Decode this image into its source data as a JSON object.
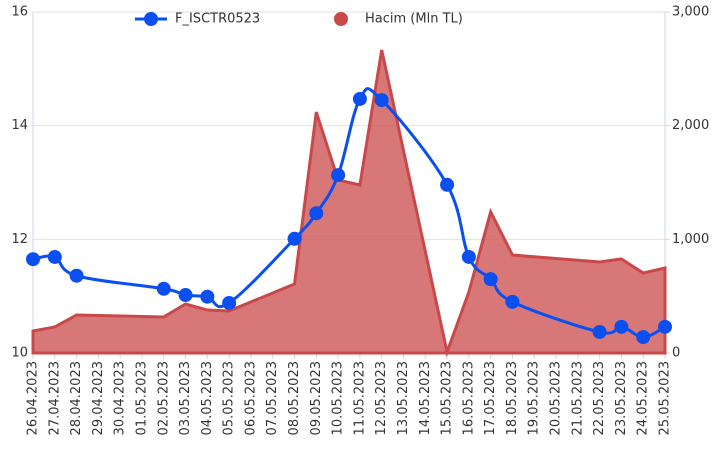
{
  "chart_data": {
    "type": "line-area",
    "categories": [
      "26.04.2023",
      "27.04.2023",
      "28.04.2023",
      "29.04.2023",
      "30.04.2023",
      "01.05.2023",
      "02.05.2023",
      "03.05.2023",
      "04.05.2023",
      "05.05.2023",
      "06.05.2023",
      "07.05.2023",
      "08.05.2023",
      "09.05.2023",
      "10.05.2023",
      "11.05.2023",
      "12.05.2023",
      "13.05.2023",
      "14.05.2023",
      "15.05.2023",
      "16.05.2023",
      "17.05.2023",
      "18.05.2023",
      "19.05.2023",
      "20.05.2023",
      "21.05.2023",
      "22.05.2023",
      "23.05.2023",
      "24.05.2023",
      "25.05.2023"
    ],
    "series": [
      {
        "name": "F_ISCTR0523",
        "color": "#0b4ff0",
        "kind": "line",
        "x": [
          "26.04.2023",
          "27.04.2023",
          "28.04.2023",
          "02.05.2023",
          "03.05.2023",
          "04.05.2023",
          "05.05.2023",
          "08.05.2023",
          "09.05.2023",
          "10.05.2023",
          "11.05.2023",
          "12.05.2023",
          "15.05.2023",
          "16.05.2023",
          "17.05.2023",
          "18.05.2023",
          "22.05.2023",
          "23.05.2023",
          "24.05.2023",
          "25.05.2023"
        ],
        "values": [
          11.65,
          11.69,
          11.36,
          11.13,
          11.02,
          10.99,
          10.88,
          12.01,
          12.46,
          13.13,
          14.47,
          14.45,
          12.96,
          11.69,
          11.3,
          10.9,
          10.37,
          10.46,
          10.28,
          10.46
        ]
      },
      {
        "name": "Hacim (Mln TL)",
        "color": "#c9494b",
        "kind": "area",
        "axis": "y2",
        "x": [
          "26.04.2023",
          "27.04.2023",
          "28.04.2023",
          "02.05.2023",
          "03.05.2023",
          "04.05.2023",
          "05.05.2023",
          "08.05.2023",
          "09.05.2023",
          "10.05.2023",
          "11.05.2023",
          "12.05.2023",
          "15.05.2023",
          "16.05.2023",
          "17.05.2023",
          "18.05.2023",
          "22.05.2023",
          "23.05.2023",
          "24.05.2023",
          "25.05.2023"
        ],
        "values": [
          194,
          229,
          334,
          317,
          431,
          378,
          370,
          607,
          2120,
          1522,
          1478,
          2666,
          9,
          537,
          1241,
          862,
          801,
          827,
          704,
          748
        ]
      }
    ],
    "ylim": [
      10,
      16
    ],
    "yticks": [
      10,
      12,
      14,
      16
    ],
    "y2lim": [
      0,
      3000
    ],
    "y2ticks": [
      0,
      {
        "value": 1000,
        "label": "1,000"
      },
      {
        "value": 2000,
        "label": "2,000"
      },
      {
        "value": 3000,
        "label": "3,000"
      }
    ],
    "grid": true
  }
}
